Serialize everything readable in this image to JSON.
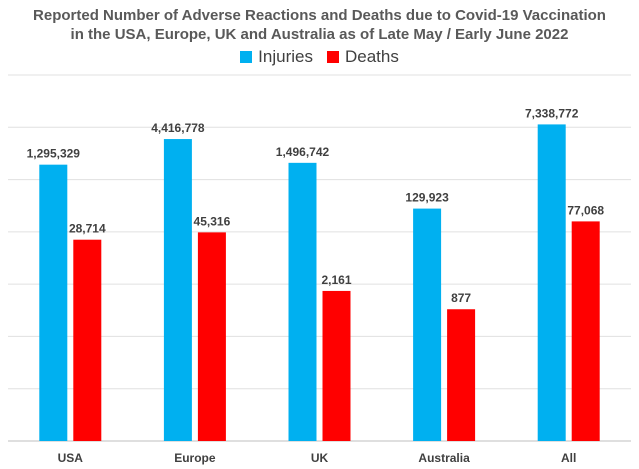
{
  "chart_data": {
    "type": "bar",
    "title_line1": "Reported Number of Adverse Reactions and Deaths due to Covid-19 Vaccination",
    "title_line2": "in the USA, Europe, UK and Australia as of Late May / Early June 2022",
    "categories": [
      "USA",
      "Europe",
      "UK",
      "Australia",
      "All"
    ],
    "scale": "independent per-category (non-linear); bar heights as displayed",
    "series": [
      {
        "name": "Injuries",
        "color": "#00B0F0",
        "values": [
          1295329,
          4416778,
          1496742,
          129923,
          7338772
        ],
        "labels": [
          "1,295,329",
          "4,416,778",
          "1,496,742",
          "129,923",
          "7,338,772"
        ],
        "displayed_height_fraction": [
          0.755,
          0.825,
          0.76,
          0.635,
          0.865
        ]
      },
      {
        "name": "Deaths",
        "color": "#FF0000",
        "values": [
          28714,
          45316,
          2161,
          877,
          77068
        ],
        "labels": [
          "28,714",
          "45,316",
          "2,161",
          "877",
          "77,068"
        ],
        "displayed_height_fraction": [
          0.55,
          0.57,
          0.41,
          0.36,
          0.6
        ]
      }
    ],
    "grid": true,
    "legend_position": "top-center"
  }
}
